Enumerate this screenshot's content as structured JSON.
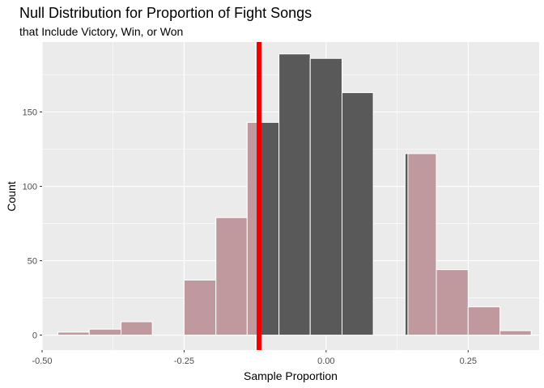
{
  "chart_data": {
    "type": "bar",
    "title": "Null Distribution for Proportion of Fight Songs",
    "subtitle": "that Include Victory, Win, or Won",
    "xlabel": "Sample Proportion",
    "ylabel": "Count",
    "xlim": [
      -0.5,
      0.375
    ],
    "ylim": [
      -10,
      197
    ],
    "x_ticks": [
      -0.5,
      -0.25,
      0.0,
      0.25
    ],
    "x_tick_labels": [
      "-0.50",
      "-0.25",
      "0.00",
      "0.25"
    ],
    "y_ticks": [
      0,
      50,
      100,
      150
    ],
    "y_tick_labels": [
      "0",
      "50",
      "100",
      "150"
    ],
    "grid": true,
    "legend": "none",
    "bin_width": 0.0556,
    "bins": [
      {
        "x0": -0.472,
        "x1": -0.417,
        "count": 2
      },
      {
        "x0": -0.417,
        "x1": -0.361,
        "count": 4
      },
      {
        "x0": -0.361,
        "x1": -0.306,
        "count": 9
      },
      {
        "x0": -0.306,
        "x1": -0.25,
        "count": 0
      },
      {
        "x0": -0.25,
        "x1": -0.194,
        "count": 37
      },
      {
        "x0": -0.194,
        "x1": -0.139,
        "count": 79
      },
      {
        "x0": -0.139,
        "x1": -0.083,
        "count": 143
      },
      {
        "x0": -0.083,
        "x1": -0.028,
        "count": 189
      },
      {
        "x0": -0.028,
        "x1": 0.028,
        "count": 186
      },
      {
        "x0": 0.028,
        "x1": 0.083,
        "count": 163
      },
      {
        "x0": 0.083,
        "x1": 0.139,
        "count": 0
      },
      {
        "x0": 0.139,
        "x1": 0.194,
        "count": 122
      },
      {
        "x0": 0.194,
        "x1": 0.25,
        "count": 44
      },
      {
        "x0": 0.25,
        "x1": 0.306,
        "count": 19
      },
      {
        "x0": 0.306,
        "x1": 0.361,
        "count": 3
      }
    ],
    "observed_stat": -0.118,
    "shade_direction": "two-sided",
    "shade_upper_start": 0.144,
    "colors": {
      "bar": "#595959",
      "shade": "#c0999e",
      "bar_border": "#ffffff",
      "observed_line": "#ee0000",
      "panel": "#ebebeb",
      "grid_major": "#ffffff",
      "axis_text": "#4d4d4d",
      "title_text": "#000000"
    }
  }
}
